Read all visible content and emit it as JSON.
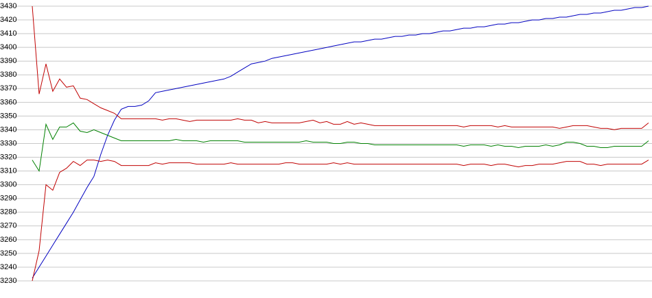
{
  "chart_data": {
    "type": "line",
    "ylim": [
      3230,
      3430
    ],
    "yticks": [
      3230,
      3240,
      3250,
      3260,
      3270,
      3280,
      3290,
      3300,
      3310,
      3320,
      3330,
      3340,
      3350,
      3360,
      3370,
      3380,
      3390,
      3400,
      3410,
      3420,
      3430
    ],
    "grid": true,
    "series": [
      {
        "color": "#0000c0",
        "values": [
          3232,
          3240,
          3248,
          3256,
          3264,
          3272,
          3280,
          3289,
          3298,
          3306,
          3322,
          3336,
          3347,
          3355,
          3357,
          3357,
          3358,
          3361,
          3367,
          3368,
          3369,
          3370,
          3371,
          3372,
          3373,
          3374,
          3375,
          3376,
          3377,
          3379,
          3382,
          3385,
          3388,
          3389,
          3390,
          3392,
          3393,
          3394,
          3395,
          3396,
          3397,
          3398,
          3399,
          3400,
          3401,
          3402,
          3403,
          3404,
          3404,
          3405,
          3406,
          3406,
          3407,
          3408,
          3408,
          3409,
          3409,
          3410,
          3410,
          3411,
          3412,
          3412,
          3413,
          3414,
          3414,
          3415,
          3415,
          3416,
          3417,
          3417,
          3418,
          3418,
          3419,
          3420,
          3420,
          3421,
          3421,
          3422,
          3422,
          3423,
          3424,
          3424,
          3425,
          3425,
          3426,
          3427,
          3427,
          3428,
          3429,
          3429,
          3430
        ]
      },
      {
        "color": "#c00000",
        "values": [
          3430,
          3366,
          3388,
          3368,
          3377,
          3371,
          3372,
          3363,
          3362,
          3359,
          3356,
          3354,
          3352,
          3348,
          3348,
          3348,
          3348,
          3348,
          3348,
          3347,
          3348,
          3348,
          3347,
          3346,
          3347,
          3347,
          3347,
          3347,
          3347,
          3347,
          3348,
          3347,
          3347,
          3345,
          3346,
          3345,
          3345,
          3345,
          3345,
          3345,
          3346,
          3347,
          3345,
          3346,
          3344,
          3344,
          3346,
          3344,
          3345,
          3344,
          3343,
          3343,
          3343,
          3343,
          3343,
          3343,
          3343,
          3343,
          3343,
          3343,
          3343,
          3343,
          3343,
          3342,
          3343,
          3343,
          3343,
          3343,
          3342,
          3343,
          3342,
          3342,
          3342,
          3342,
          3342,
          3342,
          3342,
          3341,
          3342,
          3343,
          3343,
          3343,
          3342,
          3341,
          3341,
          3340,
          3341,
          3341,
          3341,
          3341,
          3345
        ]
      },
      {
        "color": "#008000",
        "values": [
          3318,
          3310,
          3344,
          3333,
          3342,
          3342,
          3345,
          3339,
          3338,
          3340,
          3338,
          3336,
          3334,
          3332,
          3332,
          3332,
          3332,
          3332,
          3332,
          3332,
          3332,
          3333,
          3332,
          3332,
          3332,
          3331,
          3332,
          3332,
          3332,
          3332,
          3332,
          3331,
          3331,
          3331,
          3331,
          3331,
          3331,
          3331,
          3331,
          3331,
          3332,
          3331,
          3331,
          3331,
          3330,
          3330,
          3331,
          3331,
          3330,
          3330,
          3329,
          3329,
          3329,
          3329,
          3329,
          3329,
          3329,
          3329,
          3329,
          3329,
          3329,
          3329,
          3329,
          3328,
          3329,
          3329,
          3329,
          3328,
          3329,
          3328,
          3328,
          3327,
          3328,
          3328,
          3328,
          3329,
          3328,
          3329,
          3331,
          3331,
          3330,
          3328,
          3328,
          3327,
          3327,
          3328,
          3328,
          3328,
          3328,
          3328,
          3332
        ]
      },
      {
        "color": "#c00000",
        "values": [
          3230,
          3252,
          3300,
          3296,
          3309,
          3312,
          3317,
          3314,
          3318,
          3318,
          3317,
          3318,
          3317,
          3314,
          3314,
          3314,
          3314,
          3314,
          3316,
          3315,
          3316,
          3316,
          3316,
          3316,
          3315,
          3315,
          3315,
          3315,
          3315,
          3316,
          3315,
          3315,
          3315,
          3315,
          3315,
          3315,
          3315,
          3316,
          3316,
          3315,
          3315,
          3315,
          3315,
          3315,
          3316,
          3315,
          3316,
          3315,
          3315,
          3315,
          3315,
          3315,
          3315,
          3315,
          3315,
          3315,
          3315,
          3315,
          3315,
          3315,
          3315,
          3315,
          3315,
          3314,
          3315,
          3315,
          3315,
          3314,
          3315,
          3315,
          3314,
          3313,
          3314,
          3314,
          3315,
          3315,
          3315,
          3316,
          3317,
          3317,
          3317,
          3315,
          3315,
          3314,
          3315,
          3315,
          3315,
          3315,
          3315,
          3315,
          3318
        ]
      }
    ]
  }
}
